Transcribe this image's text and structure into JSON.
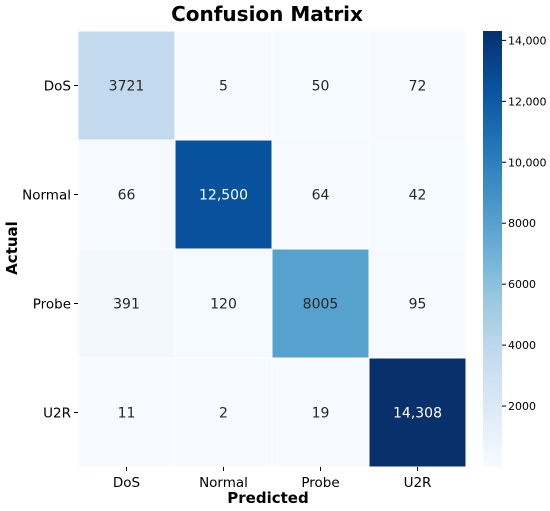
{
  "chart_data": {
    "type": "heatmap",
    "title": "Confusion Matrix",
    "xlabel": "Predicted",
    "ylabel": "Actual",
    "x_categories": [
      "DoS",
      "Normal",
      "Probe",
      "U2R"
    ],
    "y_categories": [
      "DoS",
      "Normal",
      "Probe",
      "U2R"
    ],
    "values": [
      [
        3721,
        5,
        50,
        72
      ],
      [
        66,
        12500,
        64,
        42
      ],
      [
        391,
        120,
        8005,
        95
      ],
      [
        11,
        2,
        19,
        14308
      ]
    ],
    "cell_labels": [
      [
        "3721",
        "5",
        "50",
        "72"
      ],
      [
        "66",
        "12,500",
        "64",
        "42"
      ],
      [
        "391",
        "120",
        "8005",
        "95"
      ],
      [
        "11",
        "2",
        "19",
        "14,308"
      ]
    ],
    "colormap": "Blues",
    "color_range": [
      0,
      14308
    ],
    "colorbar_ticks": [
      2000,
      4000,
      6000,
      8000,
      10000,
      12000,
      14000
    ],
    "colorbar_tick_labels": [
      "2000",
      "4000",
      "6000",
      "8000",
      "10,000",
      "12,000",
      "14,000"
    ],
    "grid": false
  }
}
